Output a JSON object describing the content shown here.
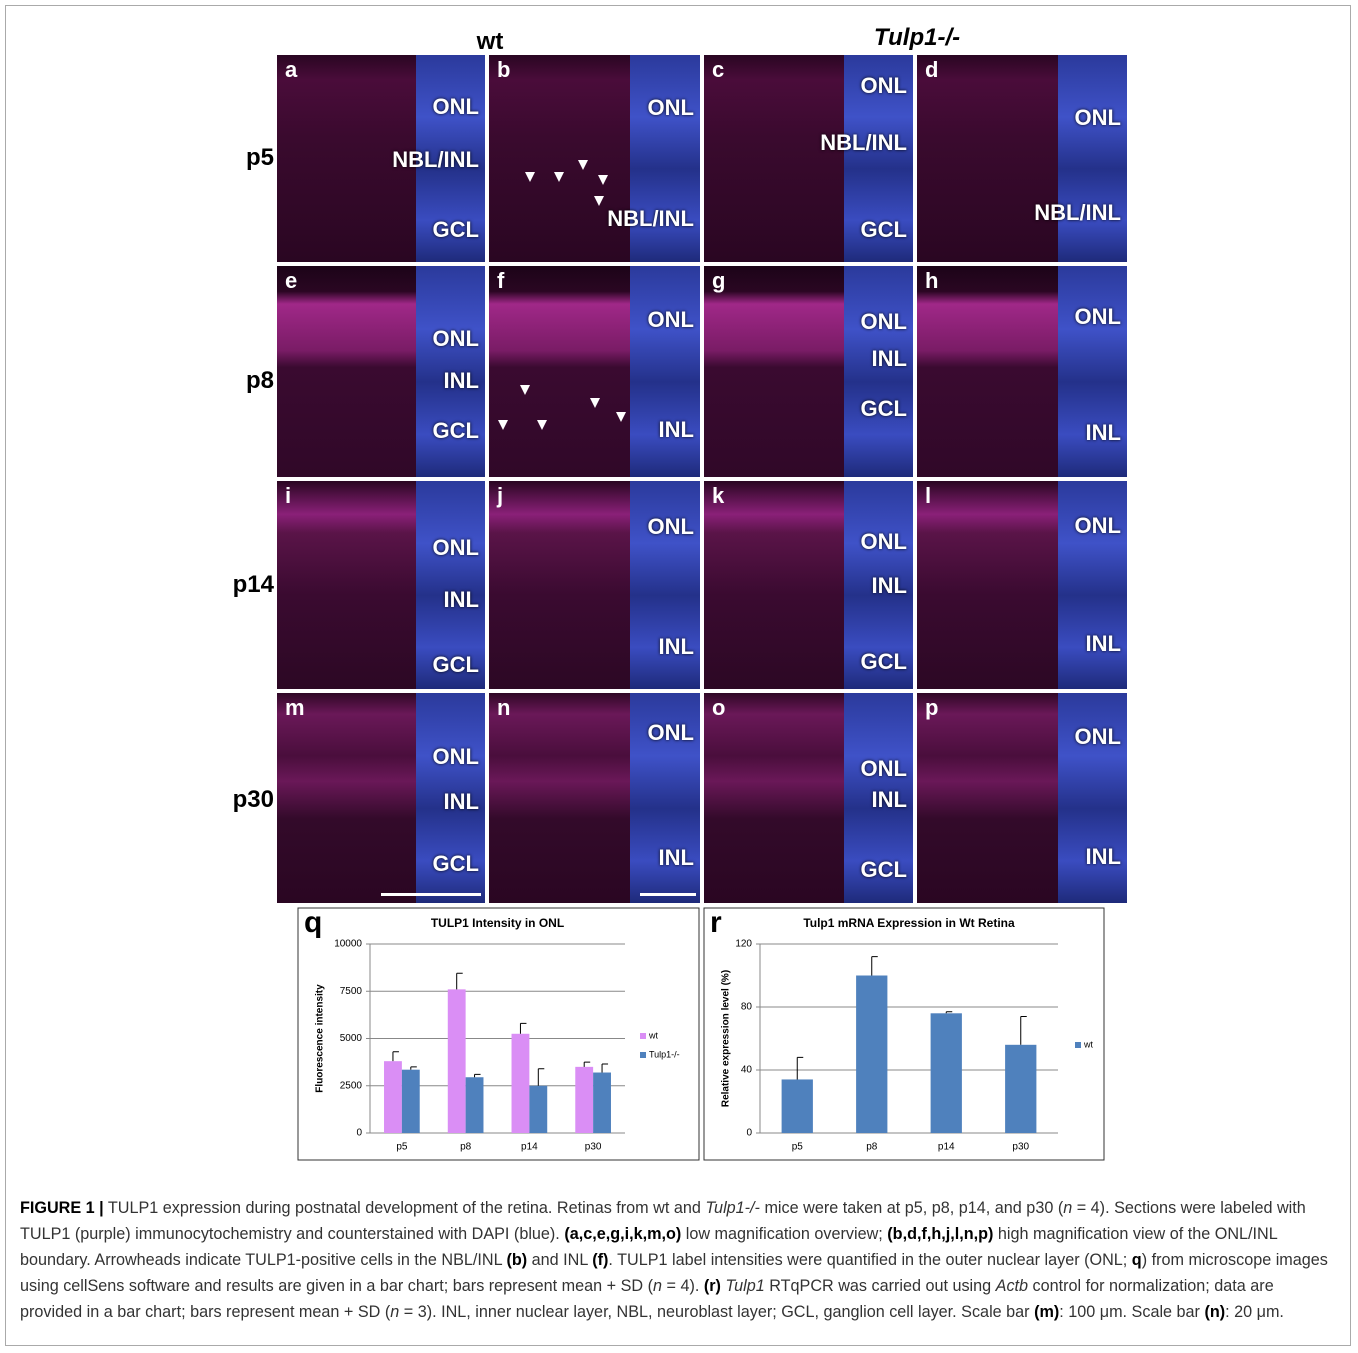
{
  "figure": {
    "column_headers": [
      "wt",
      "Tulp1-/-"
    ],
    "row_labels": [
      "p5",
      "p8",
      "p14",
      "p30"
    ],
    "panels": [
      {
        "letter": "a",
        "labels": [
          "ONL",
          "NBL/INL",
          "GCL"
        ]
      },
      {
        "letter": "b",
        "labels": [
          "ONL",
          "NBL/INL"
        ]
      },
      {
        "letter": "c",
        "labels": [
          "ONL",
          "NBL/INL",
          "GCL"
        ]
      },
      {
        "letter": "d",
        "labels": [
          "ONL",
          "NBL/INL"
        ]
      },
      {
        "letter": "e",
        "labels": [
          "ONL",
          "INL",
          "GCL"
        ]
      },
      {
        "letter": "f",
        "labels": [
          "ONL",
          "INL"
        ]
      },
      {
        "letter": "g",
        "labels": [
          "ONL",
          "INL",
          "GCL"
        ]
      },
      {
        "letter": "h",
        "labels": [
          "ONL",
          "INL"
        ]
      },
      {
        "letter": "i",
        "labels": [
          "ONL",
          "INL",
          "GCL"
        ]
      },
      {
        "letter": "j",
        "labels": [
          "ONL",
          "INL"
        ]
      },
      {
        "letter": "k",
        "labels": [
          "ONL",
          "INL",
          "GCL"
        ]
      },
      {
        "letter": "l",
        "labels": [
          "ONL",
          "INL"
        ]
      },
      {
        "letter": "m",
        "labels": [
          "ONL",
          "INL",
          "GCL"
        ]
      },
      {
        "letter": "n",
        "labels": [
          "ONL",
          "INL"
        ]
      },
      {
        "letter": "o",
        "labels": [
          "ONL",
          "INL",
          "GCL"
        ]
      },
      {
        "letter": "p",
        "labels": [
          "ONL",
          "INL"
        ]
      }
    ]
  },
  "chart_data": [
    {
      "type": "bar",
      "panel_label": "q",
      "title": "TULP1 Intensity in ONL",
      "y_label": "Fluorescence intensity",
      "categories": [
        "p5",
        "p8",
        "p14",
        "p30"
      ],
      "series": [
        {
          "name": "wt",
          "color": "#da8ef5",
          "values": [
            3800,
            7600,
            5250,
            3500
          ],
          "errors": [
            500,
            850,
            550,
            250
          ]
        },
        {
          "name": "Tulp1-/-",
          "color": "#4f81bd",
          "values": [
            3350,
            2950,
            2500,
            3200
          ],
          "errors": [
            150,
            150,
            900,
            450
          ]
        }
      ],
      "ylim": [
        0,
        10000
      ],
      "yticks": [
        0,
        2500,
        5000,
        7500,
        10000
      ],
      "grid": true
    },
    {
      "type": "bar",
      "panel_label": "r",
      "title": "Tulp1 mRNA Expression in Wt Retina",
      "y_label": "Relative expression level (%)",
      "categories": [
        "p5",
        "p8",
        "p14",
        "p30"
      ],
      "series": [
        {
          "name": "wt",
          "color": "#4f81bd",
          "values": [
            34,
            100,
            76,
            56
          ],
          "errors": [
            14,
            12,
            1,
            18
          ]
        }
      ],
      "ylim": [
        0,
        120
      ],
      "yticks": [
        0,
        40,
        80,
        120
      ],
      "grid": true
    }
  ],
  "caption": [
    {
      "text": "FIGURE 1 |",
      "bold": true
    },
    {
      "text": " TULP1 expression during postnatal development of the retina. Retinas from wt and "
    },
    {
      "text": "Tulp1-/-",
      "italic": true
    },
    {
      "text": " mice were taken at p5, p8, p14, and p30 ("
    },
    {
      "text": "n",
      "italic": true
    },
    {
      "text": " = 4). Sections were labeled with TULP1 (purple) immunocytochemistry and counterstained with DAPI (blue). "
    },
    {
      "text": "(a,c,e,g,i,k,m,o)",
      "bold": true
    },
    {
      "text": " low magnification overview; "
    },
    {
      "text": "(b,d,f,h,j,l,n,p)",
      "bold": true
    },
    {
      "text": " high magnification view of the ONL/INL boundary. Arrowheads indicate TULP1-positive cells in the NBL/INL "
    },
    {
      "text": "(b)",
      "bold": true
    },
    {
      "text": " and INL "
    },
    {
      "text": "(f)",
      "bold": true
    },
    {
      "text": ". TULP1 label intensities were quantified in the outer nuclear layer (ONL; "
    },
    {
      "text": "q",
      "bold": true
    },
    {
      "text": ") from microscope images using cellSens software and results are given in a bar chart; bars represent mean + SD ("
    },
    {
      "text": "n",
      "italic": true
    },
    {
      "text": " = 4). "
    },
    {
      "text": "(r)",
      "bold": true
    },
    {
      "text": " Tulp1",
      "italic": true
    },
    {
      "text": " RTqPCR was carried out using "
    },
    {
      "text": "Actb",
      "italic": true
    },
    {
      "text": " control for normalization; data are provided in a bar chart; bars represent mean + SD ("
    },
    {
      "text": "n",
      "italic": true
    },
    {
      "text": " = 3). INL, inner nuclear layer, NBL, neuroblast layer; GCL, ganglion cell layer. Scale bar "
    },
    {
      "text": "(m)",
      "bold": true
    },
    {
      "text": ": 100 μm. Scale bar "
    },
    {
      "text": "(n)",
      "bold": true
    },
    {
      "text": ": 20 μm."
    }
  ]
}
